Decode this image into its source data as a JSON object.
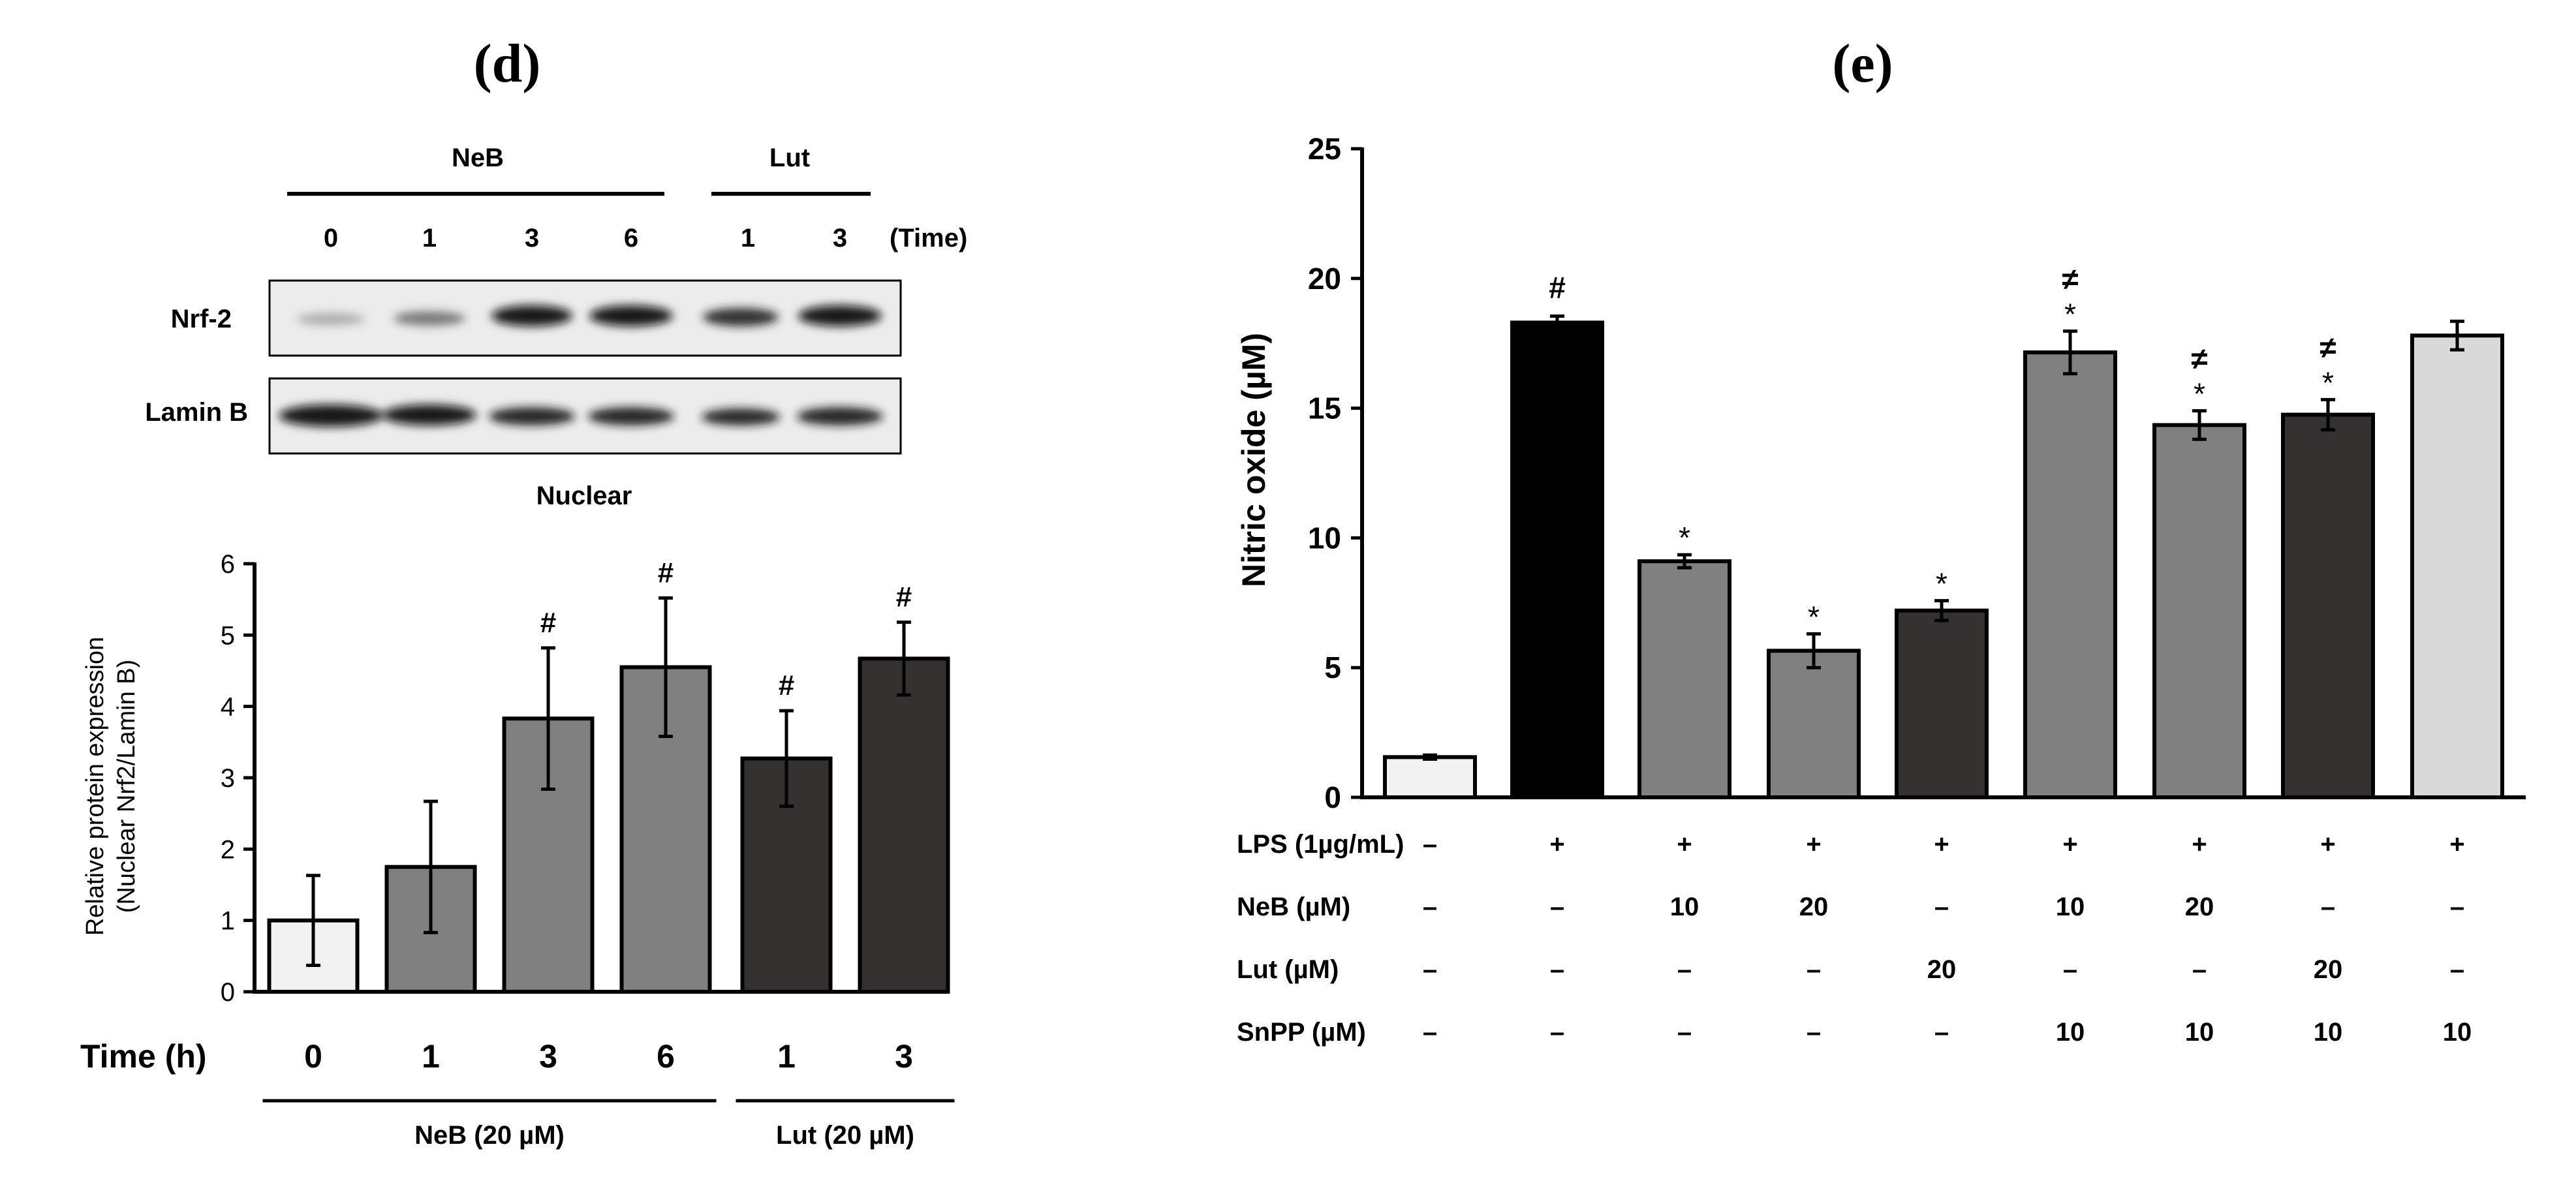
{
  "chart_data": [
    {
      "panel_label": "(d)",
      "type": "bar",
      "blot": {
        "group_labels": [
          "NeB",
          "Lut"
        ],
        "time_labels": [
          "0",
          "1",
          "3",
          "6",
          "1",
          "3"
        ],
        "time_unit": "(Time)",
        "rows": [
          "Nrf-2",
          "Lamin B"
        ],
        "fraction": "Nuclear"
      },
      "ylabel_line1": "Relative protein expression",
      "ylabel_line2": "(Nuclear Nrf2/Lamin B)",
      "ylim": [
        0,
        6
      ],
      "yticks": [
        0,
        1,
        2,
        3,
        4,
        5,
        6
      ],
      "xlabel": "Time (h)",
      "categories": [
        "0",
        "1",
        "3",
        "6",
        "1",
        "3"
      ],
      "values": [
        1.0,
        1.75,
        3.83,
        4.55,
        3.27,
        4.67
      ],
      "errors": [
        0.63,
        0.92,
        0.99,
        0.97,
        0.67,
        0.51
      ],
      "colors": [
        "#f2f2f2",
        "#808080",
        "#808080",
        "#808080",
        "#353131",
        "#353131"
      ],
      "annotations": [
        "",
        "",
        "#",
        "#",
        "#",
        "#"
      ],
      "groups": [
        {
          "label": "NeB (20 µM)",
          "count": 4
        },
        {
          "label": "Lut (20 µM)",
          "count": 2
        }
      ]
    },
    {
      "panel_label": "(e)",
      "type": "bar",
      "ylabel": "Nitric oxide (µM)",
      "ylim": [
        0,
        25
      ],
      "yticks": [
        0,
        5,
        10,
        15,
        20,
        25
      ],
      "values": [
        1.55,
        18.3,
        9.1,
        5.65,
        7.2,
        17.15,
        14.35,
        14.75,
        17.8
      ],
      "errors": [
        0.08,
        0.25,
        0.25,
        0.65,
        0.38,
        0.82,
        0.55,
        0.58,
        0.55
      ],
      "colors": [
        "#f2f2f2",
        "#000000",
        "#808080",
        "#808080",
        "#353131",
        "#808080",
        "#808080",
        "#353131",
        "#d9d9d9"
      ],
      "annotations_top": [
        "",
        "#",
        "",
        "",
        "",
        "≠",
        "≠",
        "≠",
        ""
      ],
      "annotations_bottom": [
        "",
        "",
        "*",
        "*",
        "*",
        "*",
        "*",
        "*",
        ""
      ],
      "treatment_rows": [
        {
          "label": "LPS (1µg/mL)",
          "values": [
            "–",
            "+",
            "+",
            "+",
            "+",
            "+",
            "+",
            "+",
            "+"
          ]
        },
        {
          "label": "NeB (µM)",
          "values": [
            "–",
            "–",
            "10",
            "20",
            "–",
            "10",
            "20",
            "–",
            "–"
          ]
        },
        {
          "label": "Lut (µM)",
          "values": [
            "–",
            "–",
            "–",
            "–",
            "20",
            "–",
            "–",
            "20",
            "–"
          ]
        },
        {
          "label": "SnPP (µM)",
          "values": [
            "–",
            "–",
            "–",
            "–",
            "–",
            "10",
            "10",
            "10",
            "10"
          ]
        }
      ]
    }
  ]
}
